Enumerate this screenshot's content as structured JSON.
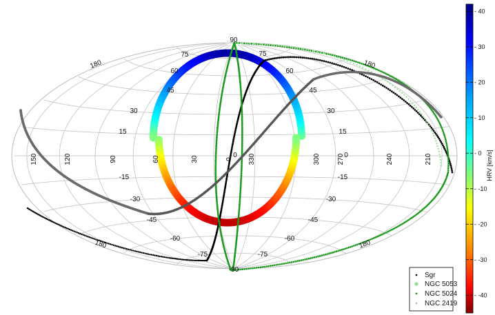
{
  "chart_data": {
    "type": "scatter",
    "projection": "aitoff-like all-sky (ellipse)",
    "title": "",
    "xlabel": "",
    "ylabel": "",
    "latitude_labels": [
      "90",
      "75",
      "60",
      "45",
      "30",
      "15",
      "0",
      "-15",
      "-30",
      "-45",
      "-60",
      "-75",
      "-90"
    ],
    "longitude_labels_equator": [
      "150",
      "120",
      "90",
      "60",
      "30",
      "0",
      "330",
      "300",
      "270",
      "240",
      "210"
    ],
    "edge_labels": [
      "180",
      "180",
      "180",
      "180"
    ],
    "colorbar": {
      "label": "HRV [km/s]",
      "range": [
        -45,
        42
      ],
      "ticks": [
        "40",
        "30",
        "20",
        "10",
        "0",
        "-10",
        "-20",
        "-30",
        "-40"
      ],
      "tick_values": [
        40,
        30,
        20,
        10,
        0,
        -10,
        -20,
        -30,
        -40
      ],
      "colors": [
        "#00007f",
        "#0000ff",
        "#0080ff",
        "#00ffff",
        "#80ff80",
        "#ffff00",
        "#ff8000",
        "#ff0000",
        "#7f0000"
      ]
    },
    "legend": {
      "position": "bottom-right",
      "entries": [
        {
          "name": "Sgr",
          "color": "#000000",
          "marker": "dot-small"
        },
        {
          "name": "NGC 5053",
          "color": "#90e090",
          "marker": "dot-large"
        },
        {
          "name": "NGC 5024",
          "color": "#1a9a1a",
          "marker": "dot-small"
        },
        {
          "name": "NGC 2419",
          "color": "#aaaaaa",
          "marker": "dot-small"
        }
      ]
    },
    "series": [
      {
        "name": "colored ring (HRV-coded)",
        "color_by": "HRV",
        "hrv_range": [
          -45,
          40
        ]
      },
      {
        "name": "Sgr",
        "color": "#000000"
      },
      {
        "name": "NGC 5053",
        "color": "#90e090"
      },
      {
        "name": "NGC 5024",
        "color": "#1a9a1a"
      },
      {
        "name": "NGC 2419",
        "color": "#6a6a6a"
      }
    ],
    "grid": true
  }
}
